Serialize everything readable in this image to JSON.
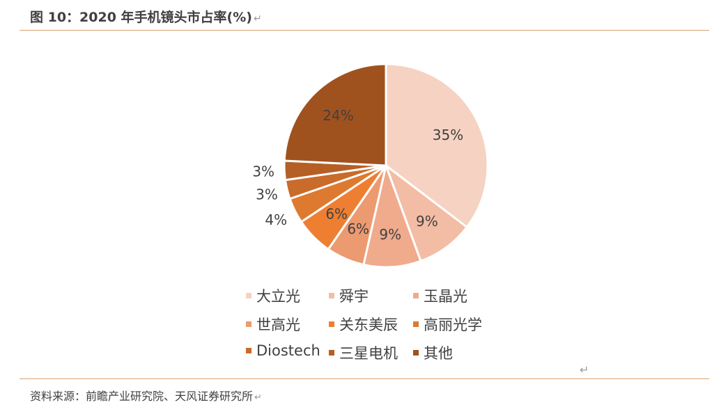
{
  "figure": {
    "title": "图 10：2020 年手机镜头市占率(%)",
    "source": "资料来源：前瞻产业研究院、天风证券研究所",
    "return_mark": "↵"
  },
  "chart_data": {
    "type": "pie",
    "labels": [
      "大立光",
      "舜宇",
      "玉晶光",
      "世高光",
      "关东美辰",
      "高丽光学",
      "Diostech",
      "三星电机",
      "其他"
    ],
    "values": [
      35,
      9,
      9,
      6,
      6,
      4,
      3,
      3,
      24
    ],
    "value_labels": [
      "35%",
      "9%",
      "9%",
      "6%",
      "6%",
      "4%",
      "3%",
      "3%",
      "24%"
    ],
    "colors": [
      "#f6d2c2",
      "#f3bca4",
      "#f0aa8c",
      "#ec9a70",
      "#ee7f32",
      "#dd7a30",
      "#c96b2a",
      "#b55f25",
      "#a0521e"
    ],
    "legend_position": "bottom",
    "start_angle_deg": 0,
    "direction": "clockwise"
  }
}
